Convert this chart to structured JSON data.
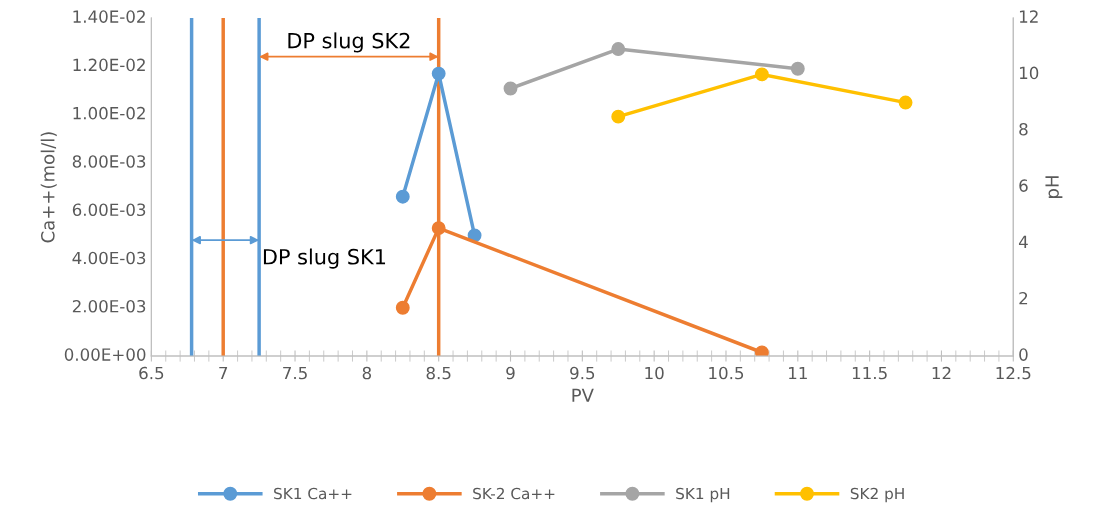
{
  "chart_data": {
    "type": "line",
    "xlabel": "PV",
    "ylabel": "Ca++(mol/l)",
    "y2label": "pH",
    "xlim": [
      6.5,
      12.5
    ],
    "xticks": [
      6.5,
      7,
      7.5,
      8,
      8.5,
      9,
      9.5,
      10,
      10.5,
      11,
      11.5,
      12,
      12.5
    ],
    "ylim": [
      0,
      0.014
    ],
    "yticks": [
      {
        "value": 0,
        "label": "0.00E+00"
      },
      {
        "value": 0.002,
        "label": "2.00E-03"
      },
      {
        "value": 0.004,
        "label": "4.00E-03"
      },
      {
        "value": 0.006,
        "label": "6.00E-03"
      },
      {
        "value": 0.008,
        "label": "8.00E-03"
      },
      {
        "value": 0.01,
        "label": "1.00E-02"
      },
      {
        "value": 0.012,
        "label": "1.20E-02"
      },
      {
        "value": 0.014,
        "label": "1.40E-02"
      }
    ],
    "y2lim": [
      0,
      12
    ],
    "y2ticks": [
      0,
      2,
      4,
      6,
      8,
      10,
      12
    ],
    "marker": "circle",
    "grid": false,
    "legend": "bottom",
    "series": [
      {
        "name": "SK1 Ca++",
        "color": "#5b9bd5",
        "x": [
          8.25,
          8.5,
          8.75
        ],
        "values": [
          0.0066,
          0.0117,
          0.005
        ]
      },
      {
        "name": "SK-2 Ca++",
        "color": "#ed7d31",
        "x": [
          8.25,
          8.5,
          10.75
        ],
        "values": [
          0.002,
          0.0053,
          0.00015
        ]
      },
      {
        "name": "SK1 pH",
        "color": "#a5a5a5",
        "axis": "y2",
        "x": [
          9,
          9.75,
          11
        ],
        "values": [
          9.5,
          10.9,
          10.2
        ]
      },
      {
        "name": "SK2 pH",
        "color": "#ffc000",
        "axis": "y2",
        "x": [
          9.75,
          10.75,
          11.75
        ],
        "values": [
          8.5,
          10.0,
          9.0
        ]
      }
    ],
    "ref_lines": [
      {
        "axis": "x",
        "value": 6.78,
        "color": "#5b9bd5"
      },
      {
        "axis": "x",
        "value": 7.0,
        "color": "#ed7d31"
      },
      {
        "axis": "x",
        "value": 7.25,
        "color": "#5b9bd5"
      },
      {
        "axis": "x",
        "value": 8.5,
        "color": "#ed7d31"
      }
    ],
    "annotations": [
      {
        "text": "DP slug SK1",
        "x": 6.78,
        "y": 0.0048
      },
      {
        "text": "DP slug SK2",
        "x": 7.25,
        "y": 0.0124
      }
    ]
  }
}
